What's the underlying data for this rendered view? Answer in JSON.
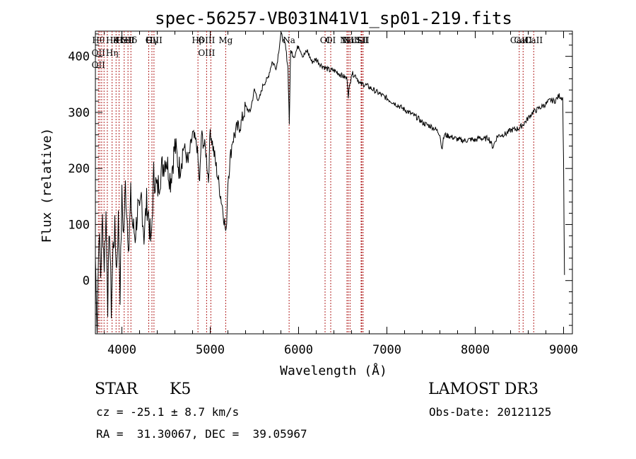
{
  "chart_data": {
    "type": "line",
    "title": "spec-56257-VB031N41V1_sp01-219.fits",
    "xlabel": "Wavelength (Å)",
    "ylabel": "Flux (relative)",
    "xlim": [
      3700,
      9100
    ],
    "ylim": [
      -95,
      445
    ],
    "xticks": [
      4000,
      5000,
      6000,
      7000,
      8000,
      9000
    ],
    "yticks": [
      0,
      100,
      200,
      300,
      400
    ],
    "grid": false,
    "series": [
      {
        "values": [
          [
            3700,
            40
          ],
          [
            3720,
            -80
          ],
          [
            3740,
            90
          ],
          [
            3760,
            10
          ],
          [
            3780,
            110
          ],
          [
            3800,
            30
          ],
          [
            3820,
            120
          ],
          [
            3840,
            -40
          ],
          [
            3860,
            100
          ],
          [
            3880,
            -50
          ],
          [
            3900,
            60
          ],
          [
            3920,
            90
          ],
          [
            3940,
            20
          ],
          [
            3960,
            110
          ],
          [
            3980,
            -20
          ],
          [
            4000,
            150
          ],
          [
            4020,
            80
          ],
          [
            4040,
            170
          ],
          [
            4060,
            110
          ],
          [
            4080,
            60
          ],
          [
            4100,
            150
          ],
          [
            4120,
            100
          ],
          [
            4150,
            80
          ],
          [
            4180,
            130
          ],
          [
            4200,
            110
          ],
          [
            4220,
            150
          ],
          [
            4250,
            80
          ],
          [
            4280,
            140
          ],
          [
            4300,
            120
          ],
          [
            4330,
            60
          ],
          [
            4360,
            190
          ],
          [
            4400,
            160
          ],
          [
            4450,
            200
          ],
          [
            4500,
            220
          ],
          [
            4550,
            180
          ],
          [
            4600,
            240
          ],
          [
            4650,
            200
          ],
          [
            4700,
            240
          ],
          [
            4750,
            210
          ],
          [
            4800,
            260
          ],
          [
            4850,
            240
          ],
          [
            4880,
            170
          ],
          [
            4900,
            260
          ],
          [
            4950,
            230
          ],
          [
            4980,
            180
          ],
          [
            5000,
            270
          ],
          [
            5050,
            220
          ],
          [
            5100,
            170
          ],
          [
            5150,
            120
          ],
          [
            5180,
            80
          ],
          [
            5200,
            180
          ],
          [
            5250,
            250
          ],
          [
            5300,
            270
          ],
          [
            5350,
            280
          ],
          [
            5400,
            310
          ],
          [
            5450,
            300
          ],
          [
            5500,
            340
          ],
          [
            5550,
            320
          ],
          [
            5600,
            350
          ],
          [
            5650,
            360
          ],
          [
            5700,
            390
          ],
          [
            5750,
            380
          ],
          [
            5800,
            440
          ],
          [
            5850,
            420
          ],
          [
            5880,
            380
          ],
          [
            5895,
            280
          ],
          [
            5910,
            410
          ],
          [
            5950,
            400
          ],
          [
            6000,
            420
          ],
          [
            6050,
            400
          ],
          [
            6100,
            410
          ],
          [
            6150,
            390
          ],
          [
            6200,
            395
          ],
          [
            6250,
            385
          ],
          [
            6300,
            380
          ],
          [
            6350,
            375
          ],
          [
            6400,
            375
          ],
          [
            6450,
            370
          ],
          [
            6500,
            365
          ],
          [
            6550,
            360
          ],
          [
            6563,
            330
          ],
          [
            6600,
            370
          ],
          [
            6650,
            365
          ],
          [
            6700,
            350
          ],
          [
            6750,
            350
          ],
          [
            6800,
            345
          ],
          [
            6850,
            340
          ],
          [
            6900,
            335
          ],
          [
            6950,
            330
          ],
          [
            7000,
            325
          ],
          [
            7050,
            320
          ],
          [
            7100,
            315
          ],
          [
            7150,
            310
          ],
          [
            7200,
            305
          ],
          [
            7250,
            300
          ],
          [
            7300,
            295
          ],
          [
            7350,
            290
          ],
          [
            7400,
            282
          ],
          [
            7450,
            278
          ],
          [
            7500,
            275
          ],
          [
            7550,
            270
          ],
          [
            7600,
            262
          ],
          [
            7620,
            235
          ],
          [
            7650,
            260
          ],
          [
            7700,
            258
          ],
          [
            7750,
            255
          ],
          [
            7800,
            252
          ],
          [
            7850,
            250
          ],
          [
            7900,
            250
          ],
          [
            7950,
            252
          ],
          [
            8000,
            250
          ],
          [
            8050,
            255
          ],
          [
            8100,
            252
          ],
          [
            8150,
            255
          ],
          [
            8200,
            238
          ],
          [
            8250,
            258
          ],
          [
            8300,
            260
          ],
          [
            8350,
            262
          ],
          [
            8400,
            268
          ],
          [
            8450,
            270
          ],
          [
            8500,
            272
          ],
          [
            8550,
            280
          ],
          [
            8600,
            290
          ],
          [
            8650,
            300
          ],
          [
            8700,
            305
          ],
          [
            8750,
            310
          ],
          [
            8800,
            315
          ],
          [
            8850,
            322
          ],
          [
            8900,
            320
          ],
          [
            8950,
            330
          ],
          [
            8990,
            325
          ],
          [
            9000,
            210
          ],
          [
            9010,
            10
          ]
        ]
      }
    ],
    "lines": [
      {
        "x": 3734,
        "labels": [
          "Hθ",
          "OII",
          "OII"
        ]
      },
      {
        "x": 3750,
        "labels": []
      },
      {
        "x": 3771,
        "labels": []
      },
      {
        "x": 3798,
        "labels": []
      },
      {
        "x": 3835,
        "labels": []
      },
      {
        "x": 3889,
        "labels": [
          "He",
          "Hη"
        ]
      },
      {
        "x": 3934,
        "labels": [
          "K"
        ]
      },
      {
        "x": 3968,
        "labels": [
          "H"
        ]
      },
      {
        "x": 4026,
        "labels": [
          "HeI"
        ]
      },
      {
        "x": 4069,
        "labels": [
          "SII"
        ]
      },
      {
        "x": 4102,
        "labels": [
          "Hδ"
        ]
      },
      {
        "x": 4304,
        "labels": [
          "G"
        ]
      },
      {
        "x": 4340,
        "labels": [
          "Hγ"
        ]
      },
      {
        "x": 4363,
        "labels": [
          "OIII"
        ]
      },
      {
        "x": 4861,
        "labels": [
          "Hβ"
        ]
      },
      {
        "x": 4959,
        "labels": [
          "OIII",
          "OIII"
        ]
      },
      {
        "x": 5007,
        "labels": []
      },
      {
        "x": 5175,
        "labels": [
          "Mg"
        ]
      },
      {
        "x": 5893,
        "labels": [
          "Na"
        ]
      },
      {
        "x": 6300,
        "labels": [
          "OI"
        ]
      },
      {
        "x": 6364,
        "labels": [
          "OI"
        ]
      },
      {
        "x": 6548,
        "labels": [
          "NII"
        ]
      },
      {
        "x": 6563,
        "labels": [
          "Hα"
        ]
      },
      {
        "x": 6583,
        "labels": [
          "NII"
        ]
      },
      {
        "x": 6708,
        "labels": [
          "Li"
        ]
      },
      {
        "x": 6716,
        "labels": [
          "SII"
        ]
      },
      {
        "x": 6731,
        "labels": [
          "SII"
        ]
      },
      {
        "x": 8498,
        "labels": [
          "CaII"
        ]
      },
      {
        "x": 8542,
        "labels": [
          "CaII"
        ]
      },
      {
        "x": 8662,
        "labels": [
          "CaII"
        ]
      }
    ]
  },
  "info": {
    "class": "STAR",
    "subclass": "K5",
    "survey": "LAMOST DR3",
    "cz": "cz = -25.1 ± 8.7 km/s",
    "obsdate": "Obs-Date: 20121125",
    "radec": "RA =  31.30067, DEC =  39.05967"
  },
  "colors": {
    "plot": "#000000",
    "marker_lines": "#b22222"
  }
}
